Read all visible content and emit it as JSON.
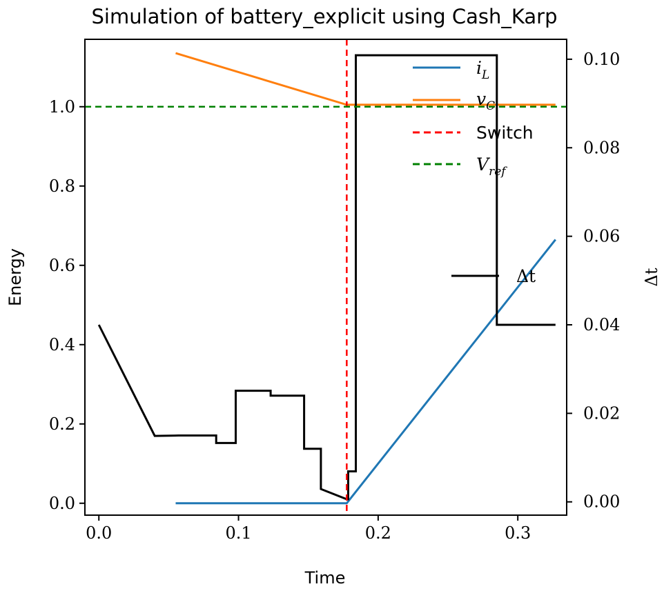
{
  "chart_data": {
    "type": "line",
    "title": "Simulation of battery_explicit using Cash_Karp",
    "xlabel": "Time",
    "ylabel": "Energy",
    "y2label": "Δt",
    "xlim": [
      -0.01,
      0.335
    ],
    "ylim": [
      -0.03,
      1.17
    ],
    "y2lim": [
      -0.003,
      0.1045
    ],
    "xticks": [
      "0.0",
      "0.1",
      "0.2",
      "0.3"
    ],
    "yticks": [
      "0.0",
      "0.2",
      "0.4",
      "0.6",
      "0.8",
      "1.0"
    ],
    "y2ticks": [
      "0.00",
      "0.02",
      "0.04",
      "0.06",
      "0.08",
      "0.10"
    ],
    "xtick_values": [
      0.0,
      0.1,
      0.2,
      0.3
    ],
    "ytick_values": [
      0.0,
      0.2,
      0.4,
      0.6,
      0.8,
      1.0
    ],
    "y2tick_values": [
      0.0,
      0.02,
      0.04,
      0.06,
      0.08,
      0.1
    ],
    "series": [
      {
        "name": "i_L",
        "axis": "left",
        "color": "#1f77b4",
        "style": "solid",
        "x": [
          0.055,
          0.1775,
          0.327
        ],
        "y": [
          0.0,
          0.0,
          0.665
        ]
      },
      {
        "name": "v_C",
        "axis": "left",
        "color": "#ff7f0e",
        "style": "solid",
        "x": [
          0.055,
          0.1775,
          0.327
        ],
        "y": [
          1.135,
          1.005,
          1.005
        ]
      },
      {
        "name": "Δt",
        "axis": "right",
        "color": "#000000",
        "style": "solid",
        "x": [
          0.0,
          0.04,
          0.04,
          0.057,
          0.057,
          0.084,
          0.084,
          0.098,
          0.098,
          0.123,
          0.123,
          0.147,
          0.147,
          0.159,
          0.159,
          0.1775,
          0.1785,
          0.1785,
          0.184,
          0.184,
          0.285,
          0.285,
          0.327
        ],
        "y": [
          0.04,
          0.0149,
          0.0149,
          0.015,
          0.015,
          0.015,
          0.0133,
          0.0133,
          0.0251,
          0.0251,
          0.024,
          0.024,
          0.012,
          0.012,
          0.0029,
          0.0006,
          0.0006,
          0.0069,
          0.0069,
          0.1009,
          0.1009,
          0.04,
          0.04
        ]
      }
    ],
    "reference_lines": [
      {
        "name": "Switch",
        "orientation": "vertical",
        "value": 0.1775,
        "color": "#ff0000",
        "style": "dashed"
      },
      {
        "name": "V_ref",
        "orientation": "horizontal",
        "value": 1.0,
        "color": "#008000",
        "style": "dashed"
      }
    ],
    "legend": {
      "placement": "top-right",
      "entries": [
        {
          "label": "i_L",
          "color": "#1f77b4",
          "style": "solid"
        },
        {
          "label": "v_C",
          "color": "#ff7f0e",
          "style": "solid"
        },
        {
          "label": "Switch",
          "color": "#ff0000",
          "style": "dashed"
        },
        {
          "label": "V_ref",
          "color": "#008000",
          "style": "dashed"
        }
      ]
    },
    "legend2": {
      "placement": "center-right",
      "entries": [
        {
          "label": "Δt",
          "color": "#000000",
          "style": "solid"
        }
      ]
    },
    "grid": false
  }
}
